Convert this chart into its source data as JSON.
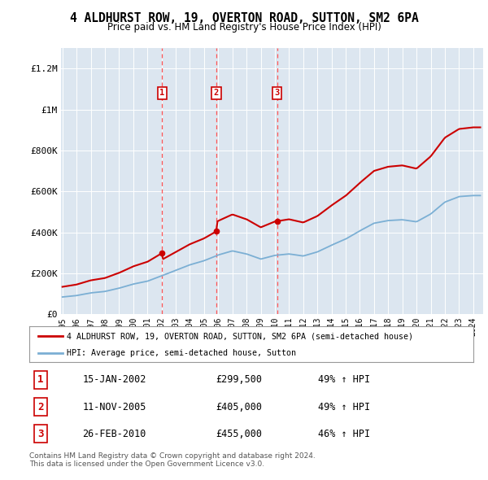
{
  "title": "4 ALDHURST ROW, 19, OVERTON ROAD, SUTTON, SM2 6PA",
  "subtitle": "Price paid vs. HM Land Registry's House Price Index (HPI)",
  "plot_bg_color": "#dce6f0",
  "red_line_label": "4 ALDHURST ROW, 19, OVERTON ROAD, SUTTON, SM2 6PA (semi-detached house)",
  "blue_line_label": "HPI: Average price, semi-detached house, Sutton",
  "transactions": [
    {
      "num": 1,
      "date_year": 2002.04,
      "price": 299500,
      "label": "15-JAN-2002",
      "pct": "49%",
      "dir": "↑"
    },
    {
      "num": 2,
      "date_year": 2005.86,
      "price": 405000,
      "label": "11-NOV-2005",
      "pct": "49%",
      "dir": "↑"
    },
    {
      "num": 3,
      "date_year": 2010.16,
      "price": 455000,
      "label": "26-FEB-2010",
      "pct": "46%",
      "dir": "↑"
    }
  ],
  "footer": "Contains HM Land Registry data © Crown copyright and database right 2024.\nThis data is licensed under the Open Government Licence v3.0.",
  "ylim": [
    0,
    1300000
  ],
  "yticks": [
    0,
    200000,
    400000,
    600000,
    800000,
    1000000,
    1200000
  ],
  "ytick_labels": [
    "£0",
    "£200K",
    "£400K",
    "£600K",
    "£800K",
    "£1M",
    "£1.2M"
  ],
  "red_color": "#cc0000",
  "blue_color": "#7bafd4",
  "vline_color": "#ff5555",
  "years_hpi": [
    1995,
    1996,
    1997,
    1998,
    1999,
    2000,
    2001,
    2002,
    2003,
    2004,
    2005,
    2006,
    2007,
    2008,
    2009,
    2010,
    2011,
    2012,
    2013,
    2014,
    2015,
    2016,
    2017,
    2018,
    2019,
    2020,
    2021,
    2022,
    2023,
    2024
  ],
  "hpi_values": [
    85000,
    92000,
    105000,
    112000,
    128000,
    148000,
    162000,
    188000,
    215000,
    242000,
    262000,
    290000,
    310000,
    295000,
    270000,
    288000,
    295000,
    285000,
    305000,
    338000,
    368000,
    408000,
    445000,
    458000,
    462000,
    452000,
    490000,
    548000,
    575000,
    580000
  ]
}
